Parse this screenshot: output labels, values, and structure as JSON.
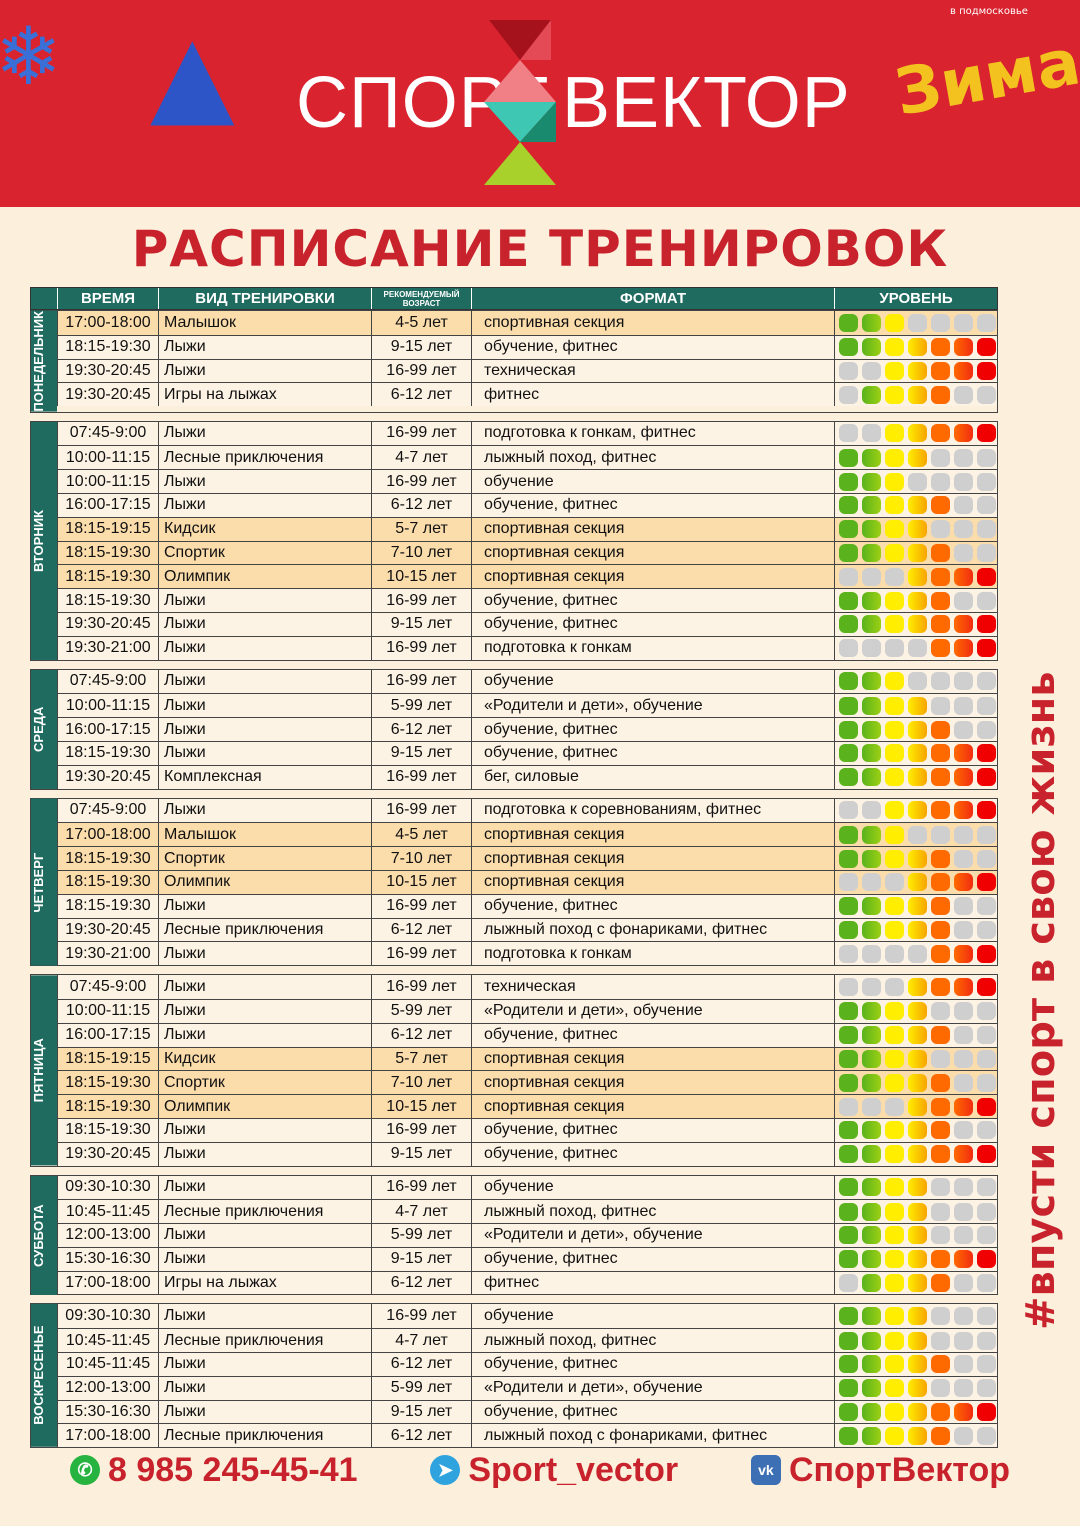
{
  "header": {
    "logo_left": "СПОРТ",
    "logo_right": "ВЕКТОР",
    "zima": "Зима",
    "zima_sub": "в подмосковье"
  },
  "title": "РАСПИСАНИЕ ТРЕНИРОВОК",
  "slogan": "#впусти спорт в свою жизнь",
  "columns": {
    "time": "ВРЕМЯ",
    "type": "ВИД ТРЕНИРОВКИ",
    "age": "РЕКОМЕНДУЕМЫЙ ВОЗРАСТ",
    "format": "ФОРМАТ",
    "level": "УРОВЕНЬ"
  },
  "level_colors": [
    "#5ab31c",
    "#9ccf14",
    "#ffee00",
    "#f7a400",
    "#ff6a00",
    "#f22c10",
    "#f00000"
  ],
  "level_inactive": "#cfcfcf",
  "days": [
    {
      "name": "ПОНЕДЕЛЬНИК",
      "rows": [
        [
          "17:00-18:00",
          "Малышок",
          "4-5 лет",
          "спортивная секция",
          "1110000",
          true
        ],
        [
          "18:15-19:30",
          "Лыжи",
          "9-15 лет",
          "обучение, фитнес",
          "1111111",
          false
        ],
        [
          "19:30-20:45",
          "Лыжи",
          "16-99 лет",
          "техническая",
          "0011111",
          false
        ],
        [
          "19:30-20:45",
          "Игры на лыжах",
          "6-12 лет",
          "фитнес",
          "0111100",
          false
        ]
      ]
    },
    {
      "name": "ВТОРНИК",
      "rows": [
        [
          "07:45-9:00",
          "Лыжи",
          "16-99 лет",
          "подготовка к гонкам, фитнес",
          "0011111",
          false
        ],
        [
          "10:00-11:15",
          "Лесные приключения",
          "4-7 лет",
          "лыжный поход, фитнес",
          "1111000",
          false
        ],
        [
          "10:00-11:15",
          "Лыжи",
          "16-99 лет",
          "обучение",
          "1110000",
          false
        ],
        [
          "16:00-17:15",
          "Лыжи",
          "6-12 лет",
          "обучение, фитнес",
          "1111100",
          false
        ],
        [
          "18:15-19:15",
          "Кидсик",
          "5-7 лет",
          "спортивная секция",
          "1111000",
          true
        ],
        [
          "18:15-19:30",
          "Спортик",
          "7-10 лет",
          "спортивная секция",
          "1111100",
          true
        ],
        [
          "18:15-19:30",
          "Олимпик",
          "10-15 лет",
          "спортивная секция",
          "0001111",
          true
        ],
        [
          "18:15-19:30",
          "Лыжи",
          "16-99 лет",
          "обучение, фитнес",
          "1111100",
          false
        ],
        [
          "19:30-20:45",
          "Лыжи",
          "9-15 лет",
          "обучение, фитнес",
          "1111111",
          false
        ],
        [
          "19:30-21:00",
          "Лыжи",
          "16-99 лет",
          "подготовка к гонкам",
          "0000111",
          false
        ]
      ]
    },
    {
      "name": "СРЕДА",
      "rows": [
        [
          "07:45-9:00",
          "Лыжи",
          "16-99 лет",
          "обучение",
          "1110000",
          false
        ],
        [
          "10:00-11:15",
          "Лыжи",
          "5-99 лет",
          "«Родители и дети», обучение",
          "1111000",
          false
        ],
        [
          "16:00-17:15",
          "Лыжи",
          "6-12 лет",
          "обучение, фитнес",
          "1111100",
          false
        ],
        [
          "18:15-19:30",
          "Лыжи",
          "9-15 лет",
          "обучение, фитнес",
          "1111111",
          false
        ],
        [
          "19:30-20:45",
          "Комплексная",
          "16-99 лет",
          "бег, силовые",
          "1111111",
          false
        ]
      ]
    },
    {
      "name": "ЧЕТВЕРГ",
      "rows": [
        [
          "07:45-9:00",
          "Лыжи",
          "16-99 лет",
          "подготовка к соревнованиям, фитнес",
          "0011111",
          false
        ],
        [
          "17:00-18:00",
          "Малышок",
          "4-5 лет",
          "спортивная секция",
          "1110000",
          true
        ],
        [
          "18:15-19:30",
          "Спортик",
          "7-10 лет",
          "спортивная секция",
          "1111100",
          true
        ],
        [
          "18:15-19:30",
          "Олимпик",
          "10-15 лет",
          "спортивная секция",
          "0001111",
          true
        ],
        [
          "18:15-19:30",
          "Лыжи",
          "16-99 лет",
          "обучение, фитнес",
          "1111100",
          false
        ],
        [
          "19:30-20:45",
          "Лесные приключения",
          "6-12 лет",
          "лыжный поход с фонариками, фитнес",
          "1111100",
          false
        ],
        [
          "19:30-21:00",
          "Лыжи",
          "16-99 лет",
          "подготовка к гонкам",
          "0000111",
          false
        ]
      ]
    },
    {
      "name": "ПЯТНИЦА",
      "rows": [
        [
          "07:45-9:00",
          "Лыжи",
          "16-99 лет",
          "техническая",
          "0001111",
          false
        ],
        [
          "10:00-11:15",
          "Лыжи",
          "5-99 лет",
          "«Родители и дети», обучение",
          "1111000",
          false
        ],
        [
          "16:00-17:15",
          "Лыжи",
          "6-12 лет",
          "обучение, фитнес",
          "1111100",
          false
        ],
        [
          "18:15-19:15",
          "Кидсик",
          "5-7 лет",
          "спортивная секция",
          "1111000",
          true
        ],
        [
          "18:15-19:30",
          "Спортик",
          "7-10 лет",
          "спортивная секция",
          "1111100",
          true
        ],
        [
          "18:15-19:30",
          "Олимпик",
          "10-15 лет",
          "спортивная секция",
          "0001111",
          true
        ],
        [
          "18:15-19:30",
          "Лыжи",
          "16-99 лет",
          "обучение, фитнес",
          "1111100",
          false
        ],
        [
          "19:30-20:45",
          "Лыжи",
          "9-15 лет",
          "обучение, фитнес",
          "1111111",
          false
        ]
      ]
    },
    {
      "name": "СУББОТА",
      "rows": [
        [
          "09:30-10:30",
          "Лыжи",
          "16-99 лет",
          "обучение",
          "1111000",
          false
        ],
        [
          "10:45-11:45",
          "Лесные приключения",
          "4-7 лет",
          "лыжный поход, фитнес",
          "1111000",
          false
        ],
        [
          "12:00-13:00",
          "Лыжи",
          "5-99 лет",
          "«Родители и дети», обучение",
          "1111000",
          false
        ],
        [
          "15:30-16:30",
          "Лыжи",
          "9-15 лет",
          "обучение, фитнес",
          "1111111",
          false
        ],
        [
          "17:00-18:00",
          "Игры на лыжах",
          "6-12 лет",
          "фитнес",
          "0111100",
          false
        ]
      ]
    },
    {
      "name": "ВОСКРЕСЕНЬЕ",
      "rows": [
        [
          "09:30-10:30",
          "Лыжи",
          "16-99 лет",
          "обучение",
          "1111000",
          false
        ],
        [
          "10:45-11:45",
          "Лесные приключения",
          "4-7 лет",
          "лыжный поход, фитнес",
          "1111000",
          false
        ],
        [
          "10:45-11:45",
          "Лыжи",
          "6-12 лет",
          "обучение, фитнес",
          "1111100",
          false
        ],
        [
          "12:00-13:00",
          "Лыжи",
          "5-99 лет",
          "«Родители и дети», обучение",
          "1111000",
          false
        ],
        [
          "15:30-16:30",
          "Лыжи",
          "9-15 лет",
          "обучение, фитнес",
          "1111111",
          false
        ],
        [
          "17:00-18:00",
          "Лесные приключения",
          "6-12 лет",
          "лыжный поход с фонариками, фитнес",
          "1111100",
          false
        ]
      ]
    }
  ],
  "footer": {
    "phone": "8 985 245-45-41",
    "telegram": "Sport_vector",
    "vk": "СпортВектор"
  }
}
